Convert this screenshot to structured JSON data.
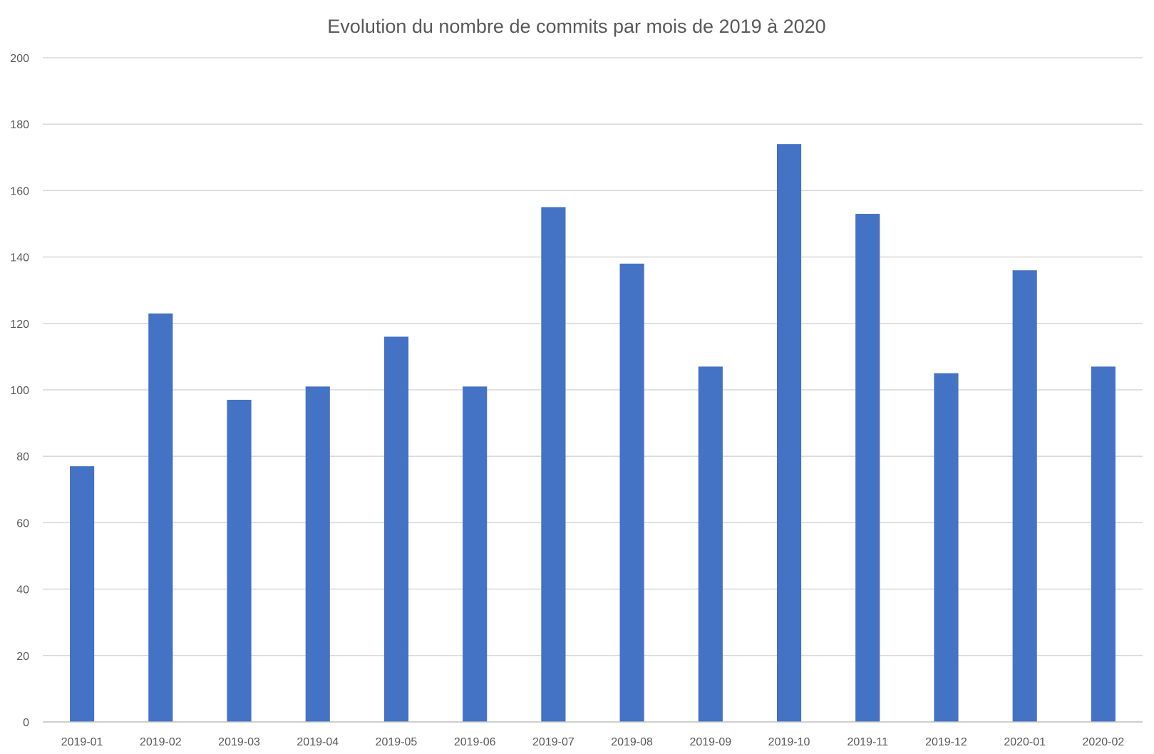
{
  "chart_data": {
    "type": "bar",
    "title": "Evolution du nombre de commits par mois de 2019 à 2020",
    "xlabel": "",
    "ylabel": "",
    "categories": [
      "2019-01",
      "2019-02",
      "2019-03",
      "2019-04",
      "2019-05",
      "2019-06",
      "2019-07",
      "2019-08",
      "2019-09",
      "2019-10",
      "2019-11",
      "2019-12",
      "2020-01",
      "2020-02"
    ],
    "values": [
      77,
      123,
      97,
      101,
      116,
      101,
      155,
      138,
      107,
      174,
      153,
      105,
      136,
      107
    ],
    "ylim": [
      0,
      200
    ],
    "yticks": [
      0,
      20,
      40,
      60,
      80,
      100,
      120,
      140,
      160,
      180,
      200
    ],
    "grid": true,
    "legend": "none",
    "bar_color": "#4472c4"
  }
}
